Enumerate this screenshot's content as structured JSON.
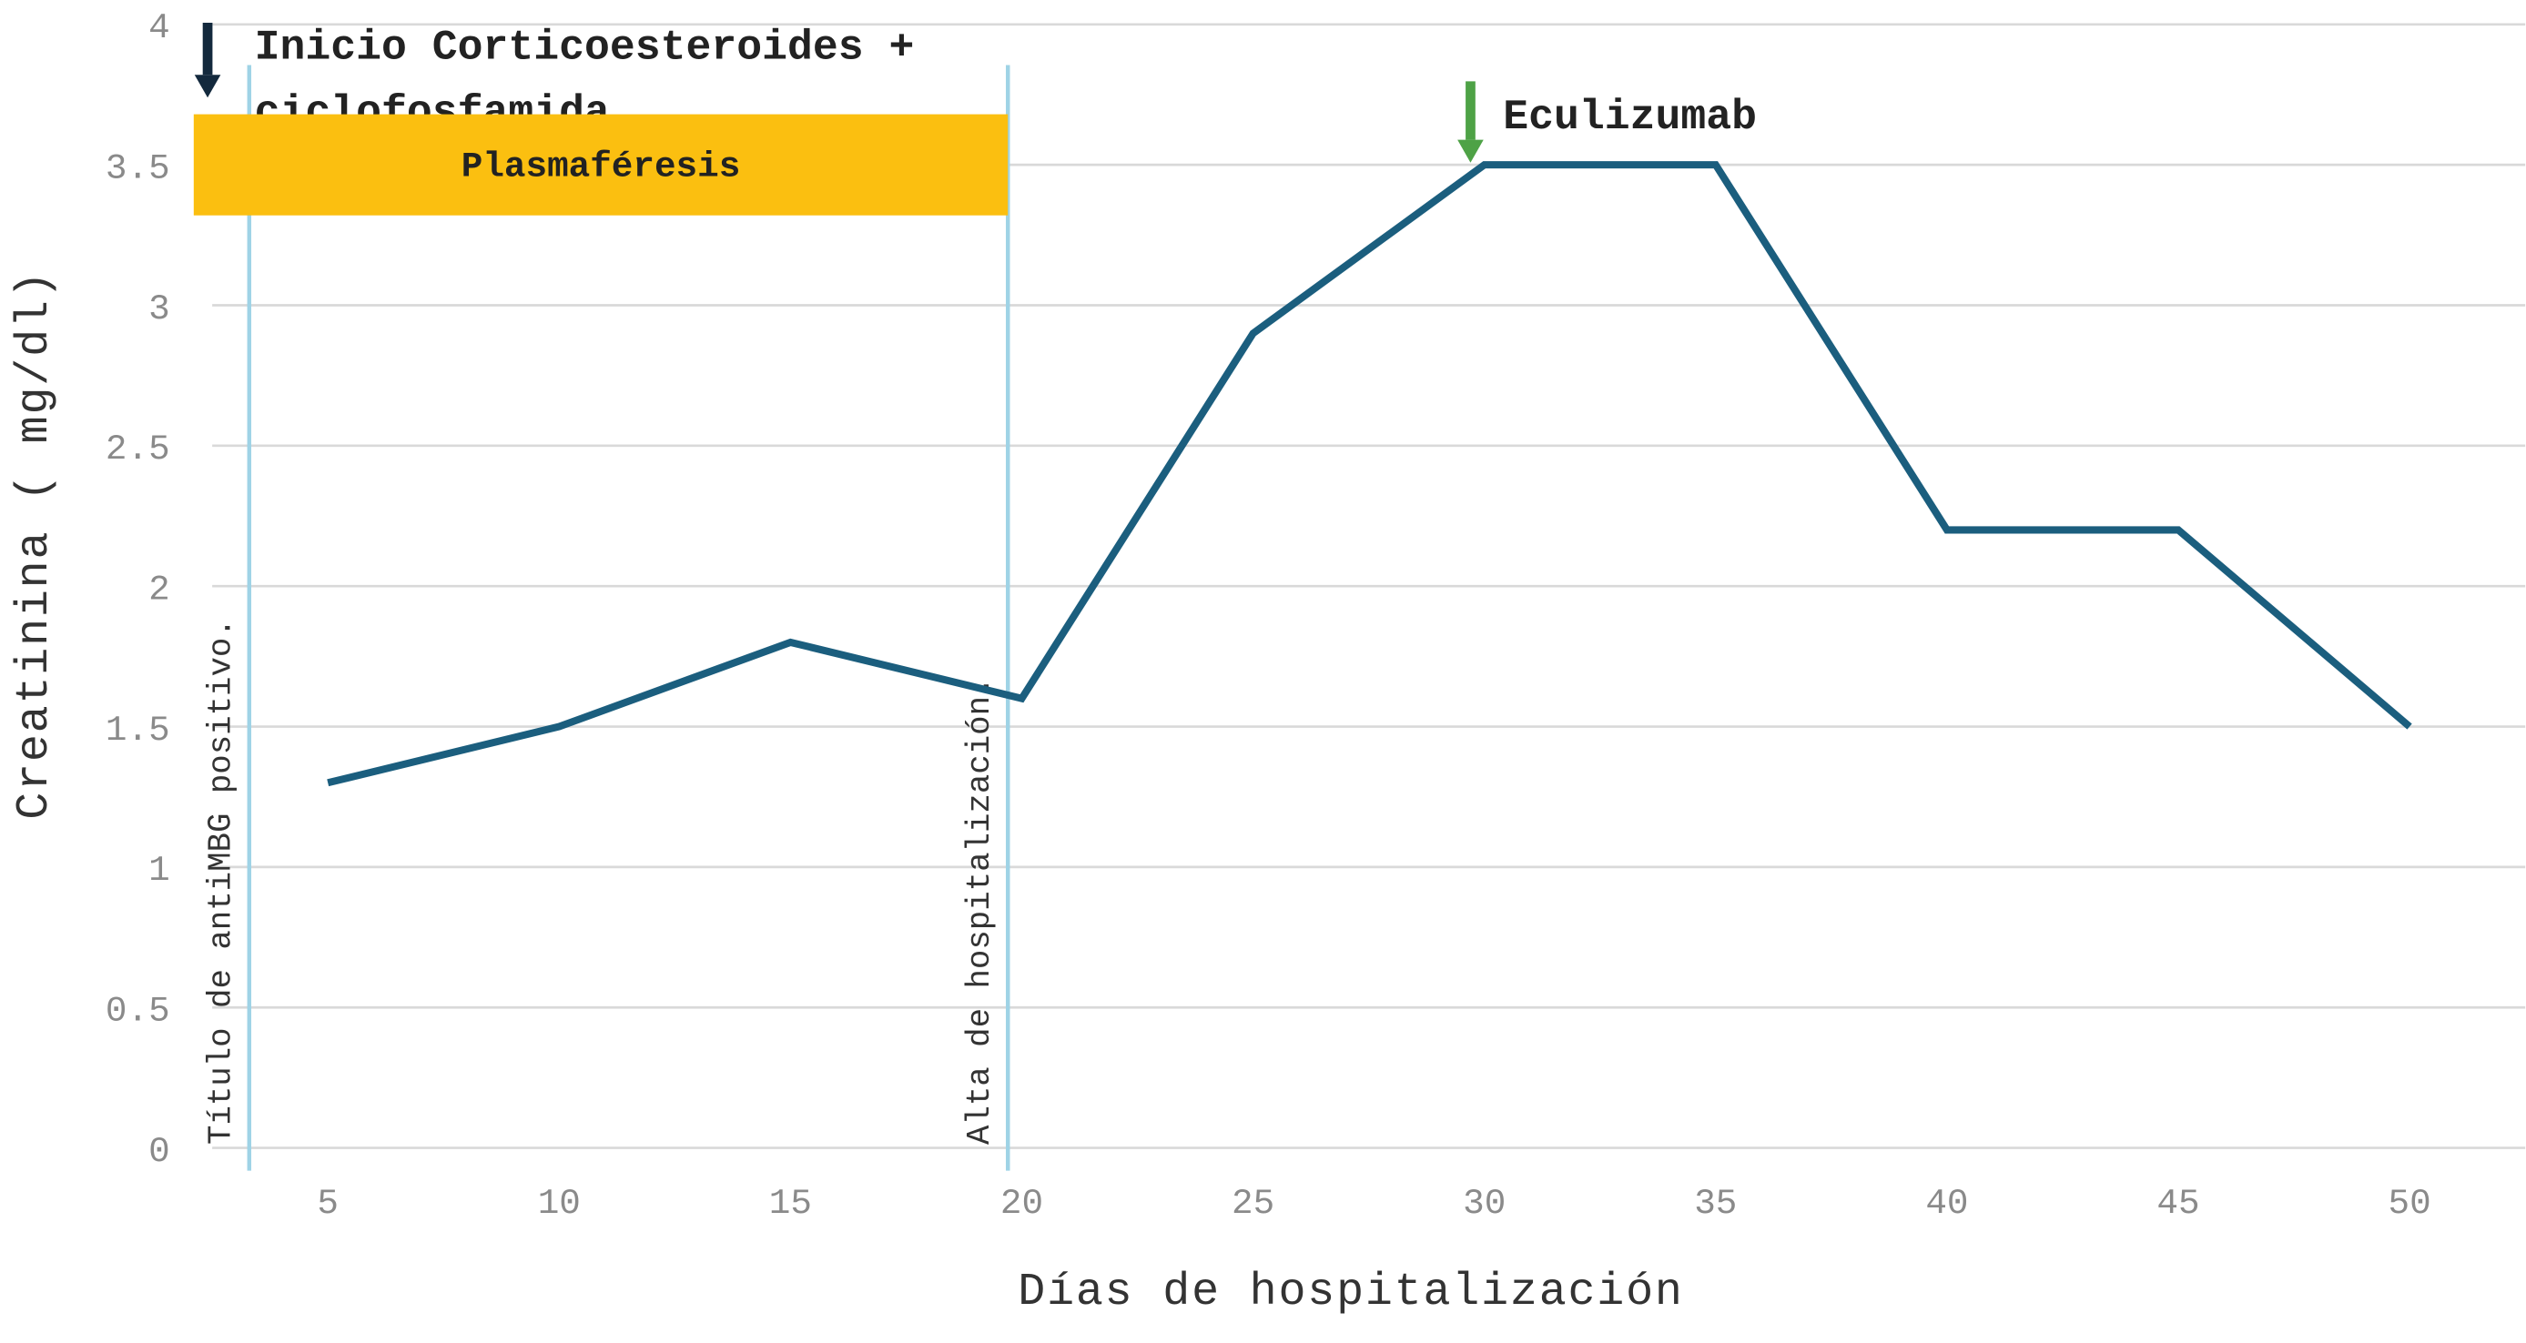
{
  "chart_data": {
    "type": "line",
    "x_label": "Días de hospitalización",
    "y_label": "Creatinina ( mg/dl)",
    "x": [
      5,
      10,
      15,
      20,
      25,
      30,
      35,
      40,
      45,
      50
    ],
    "series": [
      {
        "name": "Creatinina",
        "color": "#1b5e7e",
        "values": [
          1.3,
          1.5,
          1.8,
          1.6,
          2.9,
          3.5,
          3.5,
          2.2,
          2.2,
          1.5
        ]
      }
    ],
    "xlim": [
      2.5,
      52.5
    ],
    "xticks": [
      5,
      10,
      15,
      20,
      25,
      30,
      35,
      40,
      45,
      50
    ],
    "ylim": [
      0,
      4
    ],
    "yticks": [
      0,
      0.5,
      1,
      1.5,
      2,
      2.5,
      3,
      3.5,
      4
    ],
    "grid": true,
    "events": [
      {
        "x": 3.3,
        "label": "Título de antiMBG positivo.",
        "color": "#9fd3e6"
      },
      {
        "x": 19.7,
        "label": "Alta de hospitalización.",
        "color": "#9fd3e6"
      }
    ],
    "spans": [
      {
        "label": "Plasmaféresis",
        "x": [
          2.1,
          19.7
        ],
        "y": [
          3.32,
          3.68
        ],
        "color": "#fbbf10"
      }
    ],
    "arrows": [
      {
        "x": 2.4,
        "label": "Inicio Corticoesteroides + ciclofosfamida",
        "color": "#13293d"
      },
      {
        "x": 29.7,
        "label": "Eculizumab",
        "color": "#4ea246"
      }
    ]
  }
}
